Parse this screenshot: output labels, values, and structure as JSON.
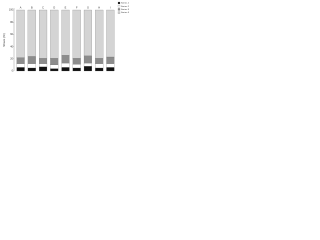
{
  "chart_data": {
    "type": "stacked-bar",
    "y_label": "Share (%)",
    "categories": [
      "A",
      "B",
      "C",
      "D",
      "E",
      "F",
      "G",
      "H",
      "I"
    ],
    "series": [
      {
        "name": "Series 1",
        "color": "#111111",
        "values": [
          6,
          5,
          7,
          4,
          6,
          5,
          8,
          5,
          6
        ]
      },
      {
        "name": "Series 2",
        "color": "#ffffff",
        "values": [
          6,
          7,
          5,
          6,
          7,
          6,
          5,
          7,
          6
        ]
      },
      {
        "name": "Series 3",
        "color": "#8c8c8c",
        "values": [
          10,
          12,
          9,
          11,
          13,
          10,
          12,
          9,
          11
        ]
      },
      {
        "name": "Series 4",
        "color": "#d4d4d4",
        "values": [
          78,
          76,
          79,
          79,
          74,
          79,
          75,
          79,
          77
        ]
      }
    ],
    "ylim": [
      0,
      100
    ],
    "yticks": [
      0,
      20,
      40,
      60,
      80,
      100
    ],
    "legend": "top-right"
  }
}
